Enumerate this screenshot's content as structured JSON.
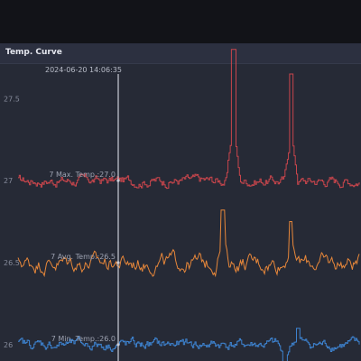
{
  "panel": {
    "title": "Temp. Curve"
  },
  "chart_data": {
    "type": "line",
    "title": "Temp. Curve",
    "xlabel": "",
    "ylabel": "",
    "ylim": [
      25.9,
      27.65
    ],
    "yticks": [
      26,
      26.5,
      27,
      27.5
    ],
    "grid": false,
    "cursor": {
      "timestamp": "2024-06-20 14:06:35",
      "series_labels": [
        "7 Max. Temp.:27.0",
        "7 Avg. Temp.:26.5",
        "7 Min. Temp.:26.0"
      ],
      "values": [
        27.0,
        26.5,
        26.0
      ]
    },
    "series": [
      {
        "key": "max",
        "color": "#c8454c",
        "base": 27.0,
        "jitter": 0.05,
        "spikes": [
          [
            0.63,
            27.8
          ],
          [
            0.8,
            27.65
          ]
        ]
      },
      {
        "key": "avg",
        "color": "#e7873a",
        "base": 26.5,
        "jitter": 0.08,
        "spikes": [
          [
            0.6,
            26.82
          ],
          [
            0.8,
            26.75
          ]
        ]
      },
      {
        "key": "min",
        "color": "#3d82cf",
        "base": 26.0,
        "jitter": 0.05,
        "spikes": [
          [
            0.78,
            25.8
          ],
          [
            0.82,
            26.1
          ]
        ]
      }
    ]
  }
}
